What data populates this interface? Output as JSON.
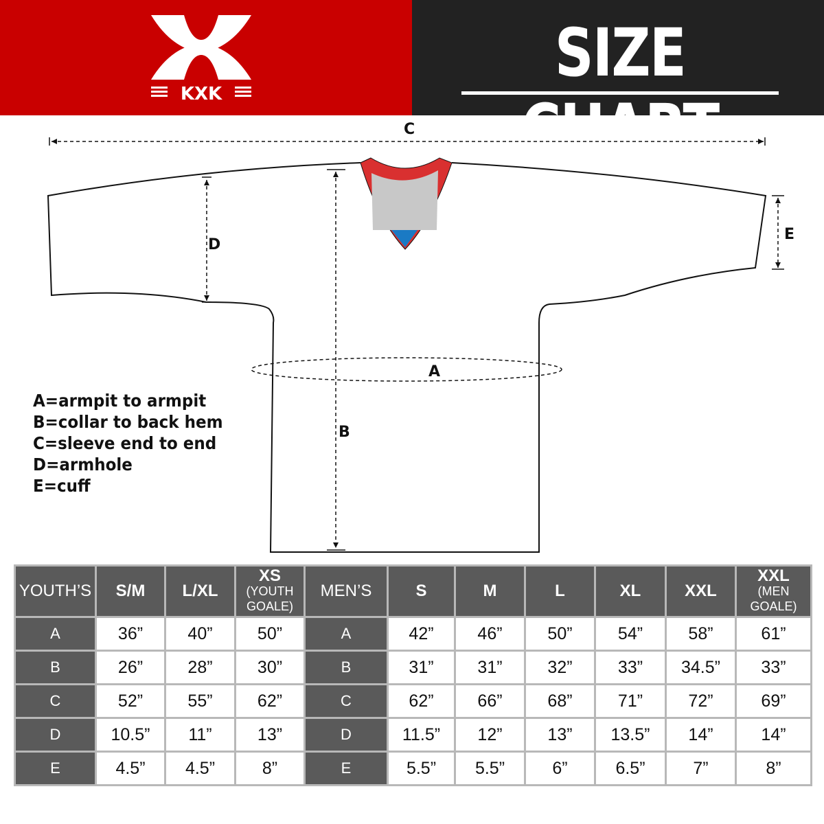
{
  "header": {
    "brand": "KXK",
    "title": "SIZE CHART",
    "colors": {
      "brand_red": "#c90000",
      "title_bg": "#222222",
      "table_header": "#5a5a5a"
    }
  },
  "diagram": {
    "labels": {
      "a": "A",
      "b": "B",
      "c": "C",
      "d": "D",
      "e": "E"
    },
    "legend": [
      "A=armpit to armpit",
      "B=collar to back hem",
      "C=sleeve end to end",
      "D=armhole",
      "E=cuff"
    ]
  },
  "table": {
    "youth_header": "YOUTH’S",
    "youth_sizes": [
      {
        "main": "S/M",
        "sub": ""
      },
      {
        "main": "L/XL",
        "sub": ""
      },
      {
        "main": "XS",
        "sub": "(YOUTH GOALE)"
      }
    ],
    "men_header": "MEN’S",
    "men_sizes": [
      {
        "main": "S",
        "sub": ""
      },
      {
        "main": "M",
        "sub": ""
      },
      {
        "main": "L",
        "sub": ""
      },
      {
        "main": "XL",
        "sub": ""
      },
      {
        "main": "XXL",
        "sub": ""
      },
      {
        "main": "XXL",
        "sub": "(MEN GOALE)"
      }
    ],
    "rows": [
      {
        "label": "A",
        "youth": [
          "36”",
          "40”",
          "50”"
        ],
        "men": [
          "42”",
          "46”",
          "50”",
          "54”",
          "58”",
          "61”"
        ]
      },
      {
        "label": "B",
        "youth": [
          "26”",
          "28”",
          "30”"
        ],
        "men": [
          "31”",
          "31”",
          "32”",
          "33”",
          "34.5”",
          "33”"
        ]
      },
      {
        "label": "C",
        "youth": [
          "52”",
          "55”",
          "62”"
        ],
        "men": [
          "62”",
          "66”",
          "68”",
          "71”",
          "72”",
          "69”"
        ]
      },
      {
        "label": "D",
        "youth": [
          "10.5”",
          "11”",
          "13”"
        ],
        "men": [
          "11.5”",
          "12”",
          "13”",
          "13.5”",
          "14”",
          "14”"
        ]
      },
      {
        "label": "E",
        "youth": [
          "4.5”",
          "4.5”",
          "8”"
        ],
        "men": [
          "5.5”",
          "5.5”",
          "6”",
          "6.5”",
          "7”",
          "8”"
        ]
      }
    ]
  }
}
